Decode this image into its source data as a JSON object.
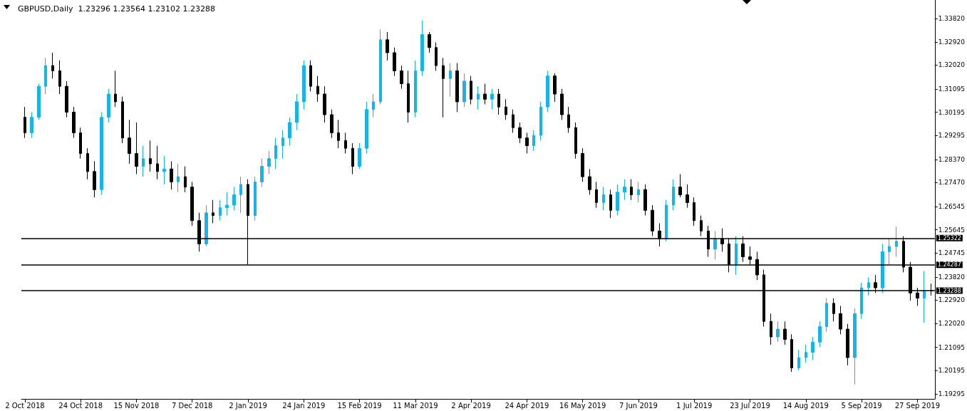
{
  "chart_data": {
    "type": "candlestick",
    "title": "GBPUSD,Daily  1.23296 1.23564 1.23102 1.23288",
    "categories": [
      "2 Oct 2018",
      null,
      null,
      null,
      null,
      null,
      null,
      null,
      "24 Oct 2018",
      null,
      null,
      null,
      null,
      null,
      null,
      null,
      "15 Nov 2018",
      null,
      null,
      null,
      null,
      null,
      null,
      null,
      "7 Dec 2018",
      null,
      null,
      null,
      null,
      null,
      null,
      null,
      "2 Jan 2019",
      null,
      null,
      null,
      null,
      null,
      null,
      null,
      "24 Jan 2019",
      null,
      null,
      null,
      null,
      null,
      null,
      null,
      "15 Feb 2019",
      null,
      null,
      null,
      null,
      null,
      null,
      null,
      "11 Mar 2019",
      null,
      null,
      null,
      null,
      null,
      null,
      null,
      "2 Apr 2019",
      null,
      null,
      null,
      null,
      null,
      null,
      null,
      "24 Apr 2019",
      null,
      null,
      null,
      null,
      null,
      null,
      null,
      "16 May 2019",
      null,
      null,
      null,
      null,
      null,
      null,
      null,
      "7 Jun 2019",
      null,
      null,
      null,
      null,
      null,
      null,
      null,
      "1 Jul 2019",
      null,
      null,
      null,
      null,
      null,
      null,
      null,
      "23 Jul 2019",
      null,
      null,
      null,
      null,
      null,
      null,
      null,
      "14 Aug 2019",
      null,
      null,
      null,
      null,
      null,
      null,
      null,
      "5 Sep 2019",
      null,
      null,
      null,
      null,
      null,
      null,
      null,
      "27 Sep 2019",
      null,
      null
    ],
    "ohlc": [
      [
        1.3,
        1.304,
        1.292,
        1.294
      ],
      [
        1.294,
        1.302,
        1.292,
        1.3
      ],
      [
        1.3,
        1.313,
        1.299,
        1.312
      ],
      [
        1.312,
        1.323,
        1.309,
        1.32
      ],
      [
        1.32,
        1.325,
        1.315,
        1.318
      ],
      [
        1.318,
        1.322,
        1.309,
        1.312
      ],
      [
        1.312,
        1.314,
        1.3,
        1.302
      ],
      [
        1.302,
        1.304,
        1.292,
        1.294
      ],
      [
        1.294,
        1.296,
        1.284,
        1.286
      ],
      [
        1.286,
        1.288,
        1.276,
        1.279
      ],
      [
        1.279,
        1.283,
        1.269,
        1.272
      ],
      [
        1.272,
        1.302,
        1.27,
        1.3
      ],
      [
        1.3,
        1.311,
        1.298,
        1.309
      ],
      [
        1.309,
        1.318,
        1.304,
        1.306
      ],
      [
        1.306,
        1.308,
        1.29,
        1.292
      ],
      [
        1.292,
        1.299,
        1.282,
        1.286
      ],
      [
        1.286,
        1.298,
        1.278,
        1.281
      ],
      [
        1.281,
        1.289,
        1.277,
        1.284
      ],
      [
        1.284,
        1.291,
        1.279,
        1.282
      ],
      [
        1.282,
        1.289,
        1.276,
        1.279
      ],
      [
        1.279,
        1.285,
        1.274,
        1.28
      ],
      [
        1.28,
        1.283,
        1.272,
        1.275
      ],
      [
        1.275,
        1.282,
        1.271,
        1.277
      ],
      [
        1.277,
        1.281,
        1.271,
        1.273
      ],
      [
        1.273,
        1.275,
        1.258,
        1.26
      ],
      [
        1.26,
        1.263,
        1.248,
        1.251
      ],
      [
        1.251,
        1.266,
        1.25,
        1.263
      ],
      [
        1.263,
        1.268,
        1.259,
        1.262
      ],
      [
        1.262,
        1.268,
        1.26,
        1.265
      ],
      [
        1.265,
        1.271,
        1.262,
        1.266
      ],
      [
        1.266,
        1.273,
        1.264,
        1.27
      ],
      [
        1.27,
        1.277,
        1.263,
        1.274
      ],
      [
        1.274,
        1.276,
        1.243,
        1.262
      ],
      [
        1.262,
        1.277,
        1.26,
        1.275
      ],
      [
        1.275,
        1.284,
        1.273,
        1.281
      ],
      [
        1.281,
        1.287,
        1.278,
        1.284
      ],
      [
        1.284,
        1.292,
        1.28,
        1.289
      ],
      [
        1.289,
        1.295,
        1.284,
        1.292
      ],
      [
        1.292,
        1.3,
        1.289,
        1.298
      ],
      [
        1.298,
        1.309,
        1.295,
        1.306
      ],
      [
        1.306,
        1.322,
        1.303,
        1.32
      ],
      [
        1.32,
        1.322,
        1.31,
        1.312
      ],
      [
        1.312,
        1.316,
        1.306,
        1.309
      ],
      [
        1.309,
        1.312,
        1.298,
        1.301
      ],
      [
        1.301,
        1.303,
        1.292,
        1.294
      ],
      [
        1.294,
        1.299,
        1.288,
        1.291
      ],
      [
        1.291,
        1.294,
        1.286,
        1.288
      ],
      [
        1.288,
        1.29,
        1.278,
        1.281
      ],
      [
        1.281,
        1.29,
        1.28,
        1.288
      ],
      [
        1.288,
        1.306,
        1.286,
        1.303
      ],
      [
        1.303,
        1.309,
        1.3,
        1.306
      ],
      [
        1.306,
        1.334,
        1.305,
        1.33
      ],
      [
        1.33,
        1.333,
        1.322,
        1.325
      ],
      [
        1.325,
        1.327,
        1.316,
        1.318
      ],
      [
        1.318,
        1.32,
        1.311,
        1.313
      ],
      [
        1.313,
        1.318,
        1.298,
        1.302
      ],
      [
        1.302,
        1.322,
        1.3,
        1.318
      ],
      [
        1.318,
        1.3375,
        1.316,
        1.332
      ],
      [
        1.332,
        1.333,
        1.325,
        1.327
      ],
      [
        1.327,
        1.329,
        1.318,
        1.32
      ],
      [
        1.32,
        1.323,
        1.3,
        1.315
      ],
      [
        1.315,
        1.321,
        1.308,
        1.318
      ],
      [
        1.318,
        1.321,
        1.302,
        1.306
      ],
      [
        1.306,
        1.317,
        1.304,
        1.314
      ],
      [
        1.314,
        1.316,
        1.305,
        1.307
      ],
      [
        1.307,
        1.312,
        1.303,
        1.309
      ],
      [
        1.309,
        1.313,
        1.305,
        1.307
      ],
      [
        1.307,
        1.311,
        1.303,
        1.309
      ],
      [
        1.309,
        1.311,
        1.301,
        1.304
      ],
      [
        1.304,
        1.307,
        1.299,
        1.301
      ],
      [
        1.301,
        1.303,
        1.294,
        1.296
      ],
      [
        1.296,
        1.298,
        1.29,
        1.292
      ],
      [
        1.292,
        1.294,
        1.286,
        1.289
      ],
      [
        1.289,
        1.295,
        1.287,
        1.293
      ],
      [
        1.293,
        1.306,
        1.291,
        1.304
      ],
      [
        1.304,
        1.318,
        1.302,
        1.316
      ],
      [
        1.316,
        1.317,
        1.306,
        1.309
      ],
      [
        1.309,
        1.311,
        1.299,
        1.301
      ],
      [
        1.301,
        1.304,
        1.294,
        1.296
      ],
      [
        1.296,
        1.298,
        1.284,
        1.286
      ],
      [
        1.286,
        1.288,
        1.275,
        1.277
      ],
      [
        1.277,
        1.28,
        1.27,
        1.272
      ],
      [
        1.272,
        1.275,
        1.265,
        1.267
      ],
      [
        1.267,
        1.273,
        1.264,
        1.27
      ],
      [
        1.27,
        1.272,
        1.261,
        1.264
      ],
      [
        1.264,
        1.274,
        1.262,
        1.271
      ],
      [
        1.271,
        1.276,
        1.268,
        1.273
      ],
      [
        1.273,
        1.276,
        1.268,
        1.27
      ],
      [
        1.27,
        1.275,
        1.267,
        1.272
      ],
      [
        1.272,
        1.274,
        1.262,
        1.264
      ],
      [
        1.264,
        1.266,
        1.254,
        1.256
      ],
      [
        1.256,
        1.259,
        1.25,
        1.253
      ],
      [
        1.253,
        1.268,
        1.252,
        1.266
      ],
      [
        1.266,
        1.276,
        1.264,
        1.273
      ],
      [
        1.273,
        1.278,
        1.269,
        1.27
      ],
      [
        1.27,
        1.274,
        1.265,
        1.267
      ],
      [
        1.267,
        1.269,
        1.258,
        1.26
      ],
      [
        1.26,
        1.262,
        1.254,
        1.256
      ],
      [
        1.256,
        1.258,
        1.246,
        1.249
      ],
      [
        1.249,
        1.256,
        1.245,
        1.253
      ],
      [
        1.253,
        1.257,
        1.248,
        1.251
      ],
      [
        1.251,
        1.253,
        1.24,
        1.243
      ],
      [
        1.243,
        1.254,
        1.239,
        1.251
      ],
      [
        1.251,
        1.254,
        1.244,
        1.246
      ],
      [
        1.246,
        1.25,
        1.243,
        1.245
      ],
      [
        1.245,
        1.248,
        1.237,
        1.239
      ],
      [
        1.239,
        1.241,
        1.219,
        1.221
      ],
      [
        1.221,
        1.224,
        1.212,
        1.215
      ],
      [
        1.215,
        1.221,
        1.213,
        1.218
      ],
      [
        1.218,
        1.221,
        1.212,
        1.214
      ],
      [
        1.214,
        1.216,
        1.2015,
        1.203
      ],
      [
        1.203,
        1.21,
        1.202,
        1.207
      ],
      [
        1.207,
        1.212,
        1.205,
        1.209
      ],
      [
        1.209,
        1.215,
        1.206,
        1.213
      ],
      [
        1.213,
        1.221,
        1.211,
        1.219
      ],
      [
        1.219,
        1.23,
        1.217,
        1.228
      ],
      [
        1.228,
        1.23,
        1.221,
        1.224
      ],
      [
        1.224,
        1.227,
        1.216,
        1.218
      ],
      [
        1.218,
        1.22,
        1.204,
        1.207
      ],
      [
        1.207,
        1.226,
        1.1966,
        1.224
      ],
      [
        1.224,
        1.236,
        1.222,
        1.234
      ],
      [
        1.234,
        1.238,
        1.231,
        1.236
      ],
      [
        1.236,
        1.239,
        1.232,
        1.234
      ],
      [
        1.234,
        1.251,
        1.232,
        1.248
      ],
      [
        1.248,
        1.253,
        1.243,
        1.25
      ],
      [
        1.25,
        1.2577,
        1.246,
        1.252
      ],
      [
        1.252,
        1.254,
        1.24,
        1.242
      ],
      [
        1.242,
        1.244,
        1.229,
        1.232
      ],
      [
        1.232,
        1.234,
        1.227,
        1.23
      ],
      [
        1.23,
        1.2405,
        1.2205,
        1.233
      ],
      [
        1.23296,
        1.23564,
        1.23102,
        1.23288
      ]
    ],
    "colors": [
      "#000000",
      "#1ab3e6",
      "#1ab3e6",
      "#1ab3e6",
      "#000000",
      "#000000",
      "#000000",
      "#000000",
      "#000000",
      "#000000",
      "#000000",
      "#1ab3e6",
      "#1ab3e6",
      "#000000",
      "#000000",
      "#000000",
      "#000000",
      "#1ab3e6",
      "#000000",
      "#000000",
      "#1ab3e6",
      "#000000",
      "#1ab3e6",
      "#000000",
      "#000000",
      "#000000",
      "#1ab3e6",
      "#000000",
      "#1ab3e6",
      "#1ab3e6",
      "#1ab3e6",
      "#1ab3e6",
      "#000000",
      "#1ab3e6",
      "#1ab3e6",
      "#1ab3e6",
      "#1ab3e6",
      "#1ab3e6",
      "#1ab3e6",
      "#1ab3e6",
      "#1ab3e6",
      "#000000",
      "#000000",
      "#000000",
      "#000000",
      "#000000",
      "#000000",
      "#000000",
      "#1ab3e6",
      "#1ab3e6",
      "#1ab3e6",
      "#1ab3e6",
      "#000000",
      "#000000",
      "#000000",
      "#000000",
      "#1ab3e6",
      "#1ab3e6",
      "#000000",
      "#000000",
      "#000000",
      "#1ab3e6",
      "#000000",
      "#1ab3e6",
      "#000000",
      "#1ab3e6",
      "#000000",
      "#1ab3e6",
      "#000000",
      "#000000",
      "#000000",
      "#000000",
      "#000000",
      "#1ab3e6",
      "#1ab3e6",
      "#1ab3e6",
      "#000000",
      "#000000",
      "#000000",
      "#000000",
      "#000000",
      "#000000",
      "#000000",
      "#1ab3e6",
      "#000000",
      "#1ab3e6",
      "#1ab3e6",
      "#000000",
      "#1ab3e6",
      "#000000",
      "#000000",
      "#000000",
      "#1ab3e6",
      "#1ab3e6",
      "#000000",
      "#000000",
      "#000000",
      "#000000",
      "#000000",
      "#1ab3e6",
      "#000000",
      "#000000",
      "#1ab3e6",
      "#000000",
      "#000000",
      "#000000",
      "#000000",
      "#000000",
      "#1ab3e6",
      "#000000",
      "#000000",
      "#1ab3e6",
      "#1ab3e6",
      "#1ab3e6",
      "#1ab3e6",
      "#1ab3e6",
      "#000000",
      "#000000",
      "#000000",
      "#1ab3e6",
      "#1ab3e6",
      "#1ab3e6",
      "#000000",
      "#1ab3e6",
      "#1ab3e6",
      "#1ab3e6",
      "#000000",
      "#000000",
      "#000000",
      "#1ab3e6",
      "#000000"
    ],
    "ylim": [
      1.191,
      1.3454
    ],
    "yticks": [
      1.19295,
      1.20195,
      1.21095,
      {
        "value": 1.2202,
        "label": "1.22020"
      },
      {
        "value": 1.2292,
        "label": "1.22920"
      },
      {
        "value": 1.2382,
        "label": "1.23820"
      },
      1.24745,
      1.25645,
      1.26545,
      {
        "value": 1.2747,
        "label": "1.27470"
      },
      {
        "value": 1.2837,
        "label": "1.28370"
      },
      1.29295,
      1.30195,
      1.31095,
      {
        "value": 1.3202,
        "label": "1.32020"
      },
      {
        "value": 1.3292,
        "label": "1.32920"
      },
      {
        "value": 1.3382,
        "label": "1.33820"
      }
    ],
    "ref_lines": [
      {
        "axis": "y",
        "value": 1.25322,
        "label": "1.25322",
        "color": "#000000"
      },
      {
        "axis": "y",
        "value": 1.24287,
        "label": "1.24287",
        "color": "#000000"
      },
      {
        "axis": "y",
        "value": 1.23288,
        "label": "1.23288",
        "color": "#000000"
      }
    ],
    "grid": false
  }
}
